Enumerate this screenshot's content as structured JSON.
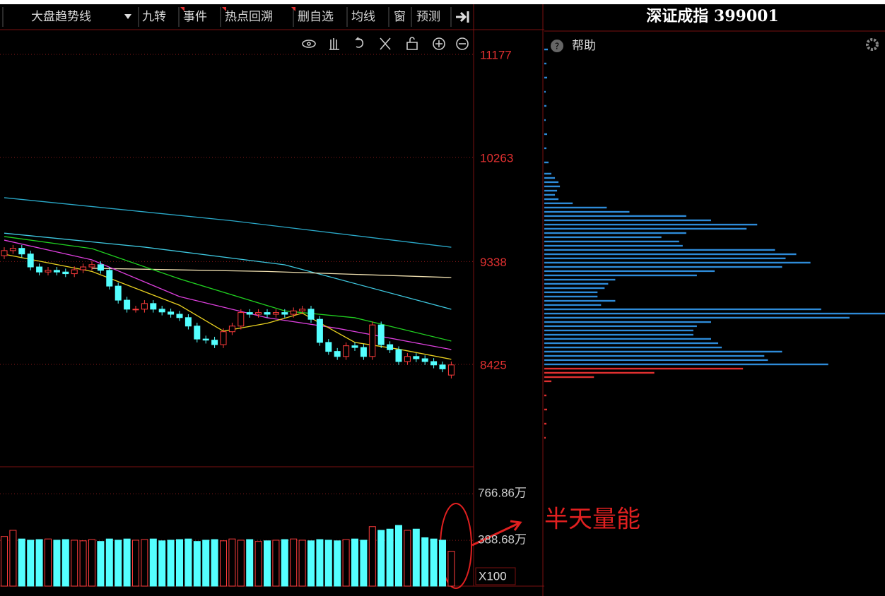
{
  "toolbar": {
    "items": [
      "大盘趋势线",
      "九转",
      "事件",
      "热点回溯",
      "删自选",
      "均线",
      "窗",
      "预测"
    ]
  },
  "panel_header": {
    "title": "深证成指 399001",
    "help": "帮助"
  },
  "annotation": "半天量能",
  "volume_button": "X100",
  "chart_data": [
    {
      "type": "candlestick",
      "up_color": "#ff3c3c",
      "down_color": "#54ffff",
      "grid": true,
      "ylim": [
        7522,
        11378
      ],
      "yticks": [
        8425,
        9338,
        10263,
        11177
      ],
      "open": [
        9390,
        9435,
        9455,
        9405,
        9290,
        9245,
        9260,
        9245,
        9230,
        9265,
        9290,
        9310,
        9260,
        9120,
        8995,
        8915,
        8915,
        8965,
        8915,
        8890,
        8870,
        8840,
        8765,
        8650,
        8640,
        8600,
        8715,
        8765,
        8885,
        8870,
        8885,
        8870,
        8885,
        8870,
        8900,
        8915,
        8825,
        8620,
        8540,
        8495,
        8590,
        8575,
        8495,
        8775,
        8600,
        8555,
        8450,
        8495,
        8475,
        8450,
        8420,
        8330
      ],
      "high": [
        9465,
        9485,
        9485,
        9435,
        9320,
        9290,
        9290,
        9275,
        9295,
        9320,
        9340,
        9340,
        9290,
        9150,
        9025,
        8945,
        8995,
        8995,
        8945,
        8920,
        8900,
        8870,
        8795,
        8680,
        8670,
        8745,
        8795,
        8915,
        8915,
        8915,
        8915,
        8915,
        8915,
        8930,
        8945,
        8945,
        8855,
        8650,
        8570,
        8620,
        8620,
        8605,
        8805,
        8805,
        8630,
        8585,
        8525,
        8525,
        8505,
        8480,
        8450,
        8450
      ],
      "low": [
        9360,
        9405,
        9375,
        9260,
        9215,
        9215,
        9215,
        9200,
        9200,
        9235,
        9260,
        9230,
        9090,
        8965,
        8885,
        8885,
        8885,
        8885,
        8860,
        8840,
        8810,
        8735,
        8620,
        8610,
        8570,
        8570,
        8685,
        8735,
        8840,
        8840,
        8840,
        8840,
        8840,
        8840,
        8870,
        8795,
        8590,
        8510,
        8465,
        8465,
        8545,
        8465,
        8465,
        8570,
        8525,
        8420,
        8420,
        8445,
        8420,
        8390,
        8355,
        8300
      ],
      "close": [
        9435,
        9455,
        9405,
        9290,
        9245,
        9260,
        9245,
        9230,
        9265,
        9290,
        9310,
        9260,
        9120,
        8995,
        8915,
        8915,
        8965,
        8915,
        8890,
        8870,
        8840,
        8765,
        8650,
        8640,
        8600,
        8715,
        8765,
        8885,
        8870,
        8885,
        8870,
        8885,
        8870,
        8900,
        8915,
        8825,
        8620,
        8540,
        8495,
        8590,
        8575,
        8495,
        8775,
        8600,
        8555,
        8450,
        8495,
        8475,
        8450,
        8420,
        8385,
        8420
      ],
      "series": [
        {
          "color": "#2aa8c8",
          "x": [
            0,
            26,
            51
          ],
          "values": [
            9905,
            9700,
            9465
          ]
        },
        {
          "color": "#3ec8e0",
          "x": [
            0,
            16,
            32,
            51
          ],
          "values": [
            9590,
            9466,
            9309,
            8914
          ]
        },
        {
          "color": "#f0e0b0",
          "x": [
            10,
            30,
            51
          ],
          "values": [
            9278,
            9250,
            9196
          ]
        },
        {
          "color": "#20d020",
          "x": [
            0,
            10,
            20,
            32,
            40,
            51
          ],
          "values": [
            9560,
            9453,
            9184,
            8900,
            8839,
            8632
          ]
        },
        {
          "color": "#e040e0",
          "x": [
            0,
            10,
            20,
            30,
            38,
            51
          ],
          "values": [
            9528,
            9353,
            9027,
            8839,
            8745,
            8557
          ]
        },
        {
          "color": "#e8d020",
          "x": [
            0,
            10,
            20,
            25,
            30,
            34,
            40,
            45,
            51
          ],
          "values": [
            9403,
            9250,
            8950,
            8720,
            8790,
            8880,
            8620,
            8560,
            8470
          ]
        }
      ]
    },
    {
      "type": "bar",
      "ylim": [
        0,
        980
      ],
      "yticks": [
        {
          "value": 766.86,
          "label": "766.86万"
        },
        {
          "value": 388.68,
          "label": "388.68万"
        }
      ],
      "values": [
        420,
        470,
        400,
        390,
        395,
        400,
        390,
        395,
        390,
        385,
        395,
        380,
        400,
        390,
        400,
        390,
        395,
        400,
        385,
        390,
        395,
        400,
        380,
        390,
        395,
        385,
        400,
        390,
        395,
        380,
        385,
        390,
        395,
        400,
        390,
        385,
        395,
        390,
        385,
        395,
        400,
        390,
        500,
        470,
        480,
        510,
        470,
        480,
        410,
        400,
        390,
        300
      ]
    },
    {
      "type": "profile",
      "ylim": [
        7522,
        11378
      ],
      "xlim": [
        0,
        480
      ],
      "series": [
        {
          "color": "#2e8bd8",
          "levels": [
            11221,
            11096,
            10971,
            10845,
            10720,
            10594,
            10469,
            10344,
            10218,
            10118,
            10080,
            10043,
            10005,
            9967,
            9930,
            9892,
            9855,
            9817,
            9779,
            9742,
            9704,
            9666,
            9629,
            9591,
            9554,
            9516,
            9478,
            9441,
            9403,
            9366,
            9328,
            9290,
            9253,
            9215,
            9177,
            9140,
            9102,
            9065,
            9027,
            8989,
            8952,
            8914,
            8876,
            8839,
            8801,
            8764,
            8726,
            8688,
            8651,
            8613,
            8575,
            8538,
            8500,
            8463,
            8425
          ],
          "values": [
            5,
            3,
            4,
            2,
            3,
            2,
            4,
            3,
            6,
            10,
            15,
            20,
            22,
            18,
            15,
            20,
            40,
            88,
            120,
            200,
            235,
            300,
            285,
            200,
            165,
            190,
            195,
            325,
            355,
            340,
            375,
            335,
            240,
            215,
            100,
            90,
            85,
            75,
            75,
            100,
            80,
            390,
            480,
            430,
            235,
            215,
            210,
            210,
            235,
            245,
            250,
            335,
            310,
            315,
            400
          ]
        },
        {
          "color": "#e03030",
          "levels": [
            8387,
            8350,
            8312,
            8275,
            8149,
            8024,
            7898,
            7773
          ],
          "values": [
            280,
            155,
            70,
            10,
            3,
            4,
            3,
            2
          ]
        }
      ]
    }
  ]
}
